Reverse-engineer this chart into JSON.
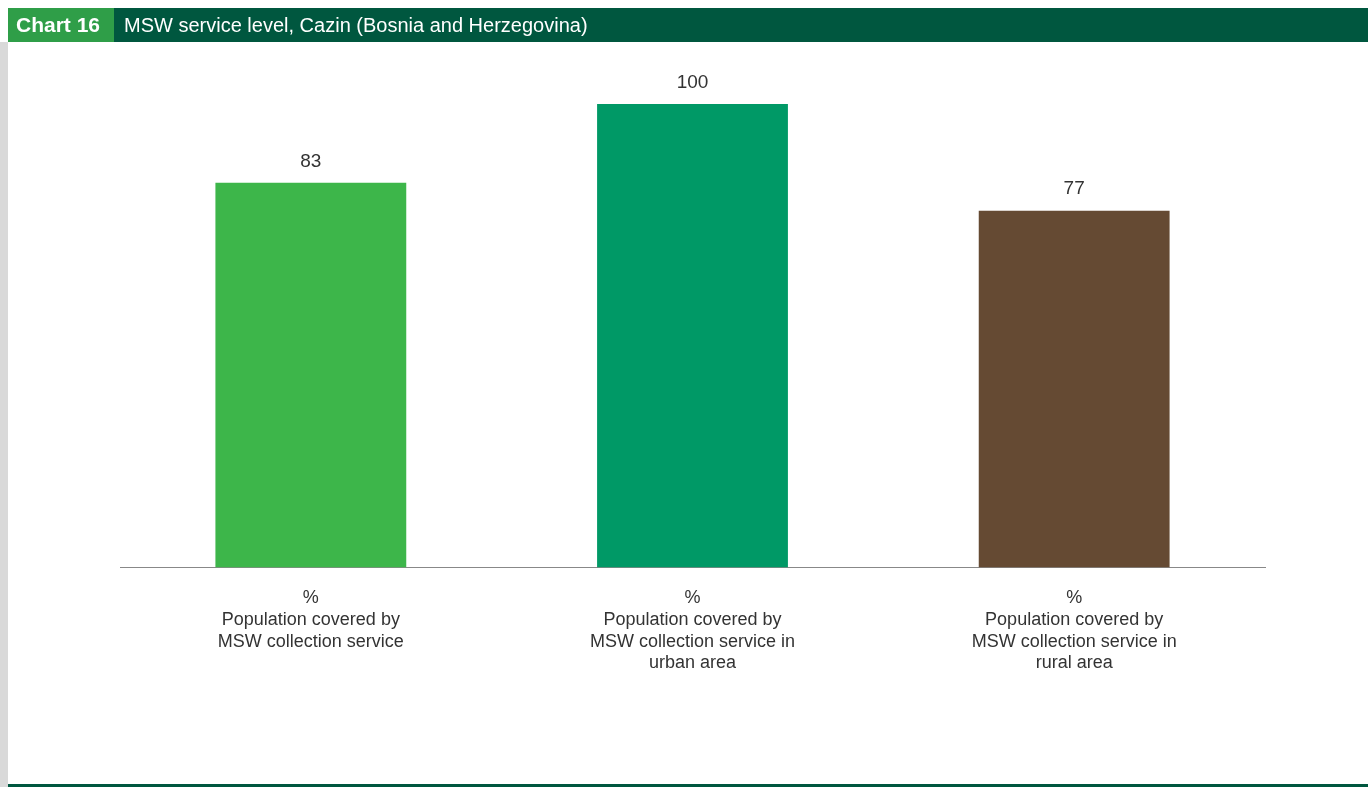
{
  "chart_data": {
    "type": "bar",
    "title": "MSW service level, Cazin (Bosnia and Herzegovina)",
    "annotations": [
      "Chart 16"
    ],
    "categories": [
      "%\nPopulation covered by\nMSW collection service",
      "%\nPopulation covered by\nMSW collection service in\nurban area",
      "%\nPopulation covered by\nMSW collection service in\nrural area"
    ],
    "values": [
      83,
      100,
      77
    ],
    "colors": [
      "#3db64a",
      "#009966",
      "#654a33"
    ],
    "data_labels": true,
    "grid": false,
    "legend": false
  }
}
